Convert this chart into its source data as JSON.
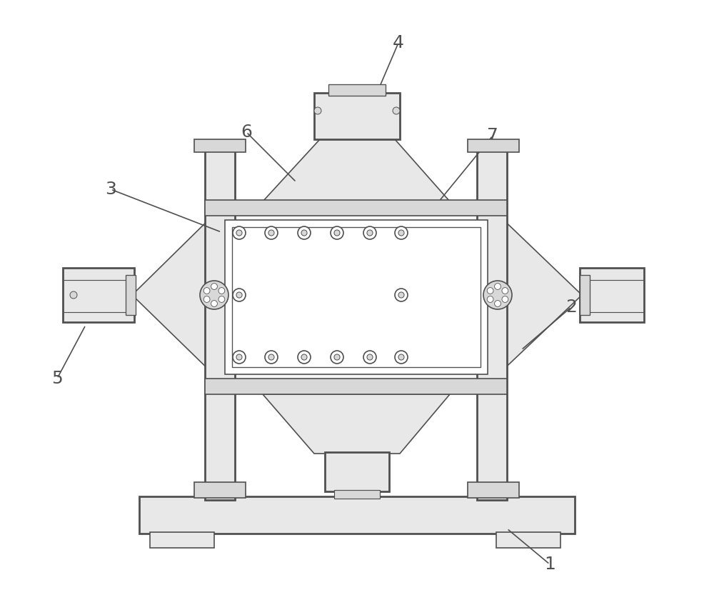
{
  "bg_color": "#ffffff",
  "line_color": "#505050",
  "lw": 1.2,
  "tlw": 2.0,
  "fc_light": "#f5f5f5",
  "fc_mid": "#e8e8e8",
  "fc_dark": "#d8d8d8"
}
